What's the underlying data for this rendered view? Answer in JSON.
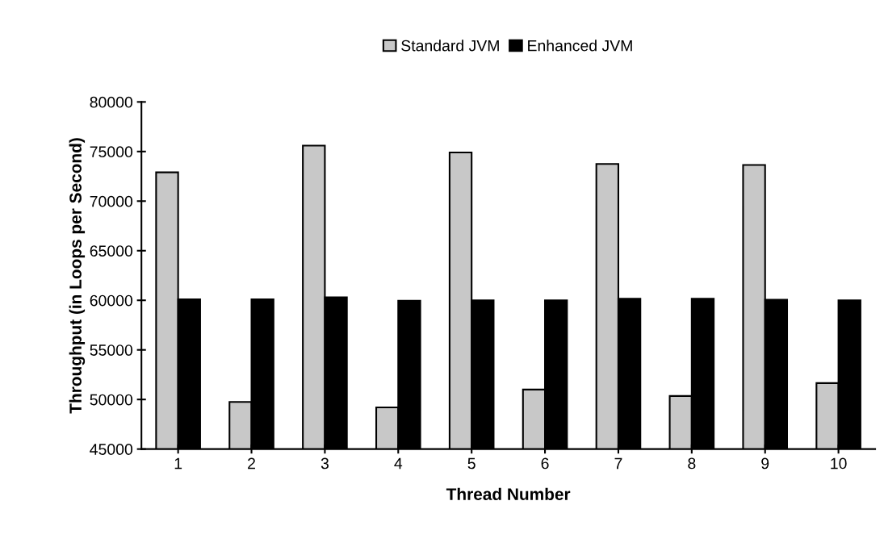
{
  "chart_data": {
    "type": "bar",
    "xlabel": "Thread Number",
    "ylabel": "Throughput (in Loops per Second)",
    "categories": [
      "1",
      "2",
      "3",
      "4",
      "5",
      "6",
      "7",
      "8",
      "9",
      "10"
    ],
    "series": [
      {
        "name": "Standard JVM",
        "color": "#c8c8c8",
        "values": [
          72900,
          49750,
          75600,
          49200,
          74900,
          51000,
          73750,
          50350,
          73650,
          51650
        ]
      },
      {
        "name": "Enhanced JVM",
        "color": "#000000",
        "values": [
          60100,
          60100,
          60300,
          59950,
          60000,
          60000,
          60150,
          60150,
          60050,
          60000
        ]
      }
    ],
    "ylim": [
      45000,
      80000
    ],
    "yticks": [
      45000,
      50000,
      55000,
      60000,
      65000,
      70000,
      75000,
      80000
    ],
    "grid": false,
    "legend": "top"
  }
}
